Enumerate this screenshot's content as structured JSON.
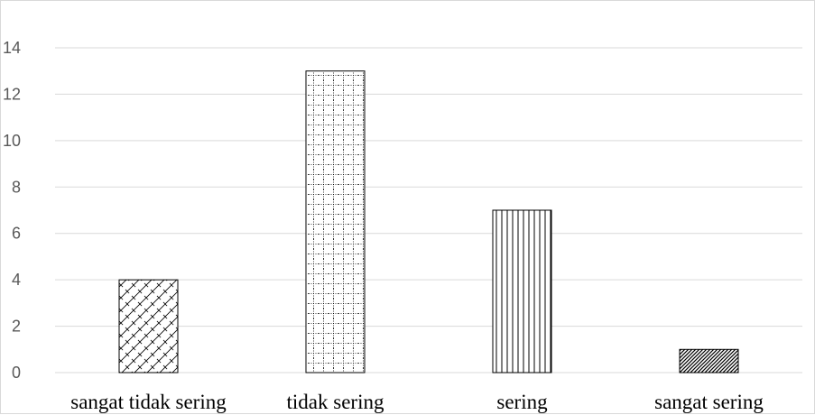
{
  "chart_data": {
    "type": "bar",
    "categories": [
      "sangat tidak sering",
      "tidak sering",
      "sering",
      "sangat sering"
    ],
    "values": [
      4,
      13,
      7,
      1
    ],
    "title": "",
    "xlabel": "",
    "ylabel": "",
    "ylim": [
      0,
      14
    ],
    "yticks": [
      0,
      2,
      4,
      6,
      8,
      10,
      12,
      14
    ],
    "grid": true,
    "legend": "none",
    "bar_patterns": [
      "diagonal-brick",
      "dotted-grid",
      "vertical-lines",
      "dense-diagonal"
    ],
    "colors": {
      "bar_stroke": "#000000",
      "grid": "#d9d9d9",
      "tick_text": "#595959",
      "category_text": "#000000"
    }
  }
}
